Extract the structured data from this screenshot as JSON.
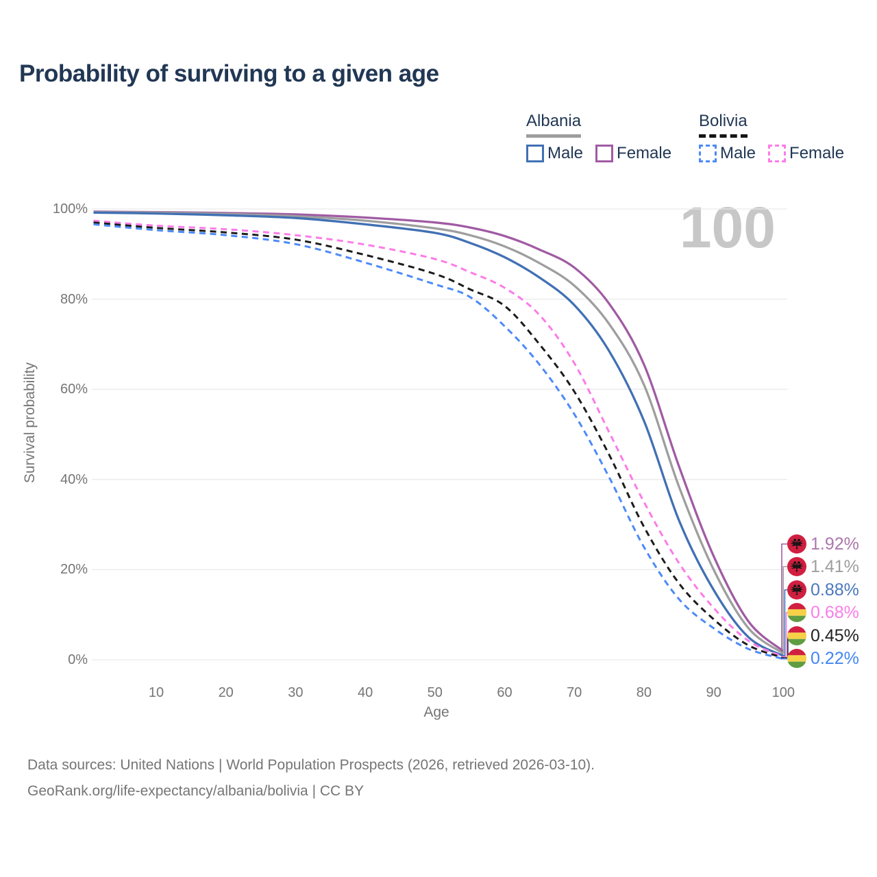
{
  "title": "Probability of surviving to a given age",
  "watermark": "100",
  "legend": {
    "groups": [
      {
        "country": "Albania",
        "underline_style": "solid",
        "items": [
          {
            "label": "Male"
          },
          {
            "label": "Female"
          }
        ]
      },
      {
        "country": "Bolivia",
        "underline_style": "dashed",
        "items": [
          {
            "label": "Male"
          },
          {
            "label": "Female"
          }
        ]
      }
    ]
  },
  "chart_data": {
    "type": "line",
    "title": "Probability of surviving to a given age",
    "xlabel": "Age",
    "ylabel": "Survival probability",
    "xlim": [
      1,
      100
    ],
    "ylim": [
      0,
      100
    ],
    "x_ticks": [
      10,
      20,
      30,
      40,
      50,
      60,
      70,
      80,
      90,
      100
    ],
    "y_ticks": [
      "0%",
      "20%",
      "40%",
      "60%",
      "80%",
      "100%"
    ],
    "grid": "horizontal",
    "legend_position": "top-right",
    "hovered_age": "100",
    "ages": [
      1,
      10,
      20,
      30,
      40,
      50,
      55,
      60,
      65,
      70,
      75,
      80,
      85,
      90,
      95,
      100
    ],
    "series": [
      {
        "name": "Albania Female",
        "country": "Albania",
        "sex": "Female",
        "style": "solid",
        "color": "#a05ba3",
        "label_color": "#ab77ad",
        "end_label": "1.92%",
        "flag": "albania",
        "values": [
          99.4,
          99.3,
          99.1,
          98.8,
          98.1,
          97.0,
          95.9,
          94.0,
          91.0,
          87.0,
          79.0,
          65.5,
          43.0,
          23.0,
          8.5,
          1.92
        ]
      },
      {
        "name": "Albania",
        "country": "Albania",
        "sex": "Both sexes",
        "style": "solid",
        "color": "#9e9e9e",
        "label_color": "#9e9e9e",
        "end_label": "1.41%",
        "flag": "albania",
        "values": [
          99.3,
          99.2,
          98.9,
          98.4,
          97.4,
          95.7,
          94.2,
          91.7,
          88.0,
          83.0,
          74.5,
          61.0,
          38.5,
          20.0,
          7.0,
          1.41
        ]
      },
      {
        "name": "Albania Male",
        "country": "Albania",
        "sex": "Male",
        "style": "solid",
        "color": "#4170b4",
        "label_color": "#4a77bd",
        "end_label": "0.88%",
        "flag": "albania",
        "values": [
          99.2,
          99.0,
          98.6,
          98.0,
          96.6,
          94.7,
          92.5,
          89.3,
          84.8,
          78.7,
          68.5,
          53.0,
          31.0,
          15.5,
          5.0,
          0.88
        ]
      },
      {
        "name": "Bolivia Female",
        "country": "Bolivia",
        "sex": "Female",
        "style": "dashed",
        "color": "#fb7ce8",
        "label_color": "#fb7ce8",
        "end_label": "0.68%",
        "flag": "bolivia",
        "values": [
          97.4,
          96.3,
          95.5,
          94.2,
          92.1,
          88.9,
          86.0,
          82.5,
          76.5,
          65.8,
          50.5,
          35.0,
          21.5,
          11.5,
          4.2,
          0.68
        ]
      },
      {
        "name": "Bolivia",
        "country": "Bolivia",
        "sex": "Both sexes",
        "style": "dashed",
        "color": "#1c1c1c",
        "label_color": "#222222",
        "end_label": "0.45%",
        "flag": "bolivia",
        "values": [
          97.0,
          95.8,
          94.8,
          93.2,
          89.8,
          85.6,
          82.2,
          78.5,
          70.0,
          59.5,
          45.5,
          29.5,
          17.0,
          9.0,
          3.2,
          0.45
        ]
      },
      {
        "name": "Bolivia Male",
        "country": "Bolivia",
        "sex": "Male",
        "style": "dashed",
        "color": "#4c8af8",
        "label_color": "#4285f4",
        "end_label": "0.22%",
        "flag": "bolivia",
        "values": [
          96.6,
          95.3,
          94.2,
          92.2,
          88.1,
          83.3,
          80.5,
          74.0,
          65.5,
          54.5,
          40.5,
          25.0,
          13.5,
          7.0,
          2.4,
          0.22
        ]
      }
    ]
  },
  "footer": {
    "line1": "Data sources: United Nations | World Population Prospects (2026, retrieved 2026-03-10).",
    "line2": "GeoRank.org/life-expectancy/albania/bolivia | CC BY"
  },
  "colors": {
    "title_text": "#213754",
    "axis_text": "#757575",
    "grid": "#e9e9e9",
    "watermark": "#c7c7c7",
    "flag_albania_red": "#d01f40",
    "flag_eagle_black": "#141414",
    "flag_bolivia_red": "#d01f40",
    "flag_bolivia_yellow": "#f6d148",
    "flag_bolivia_green": "#5f9c42"
  }
}
